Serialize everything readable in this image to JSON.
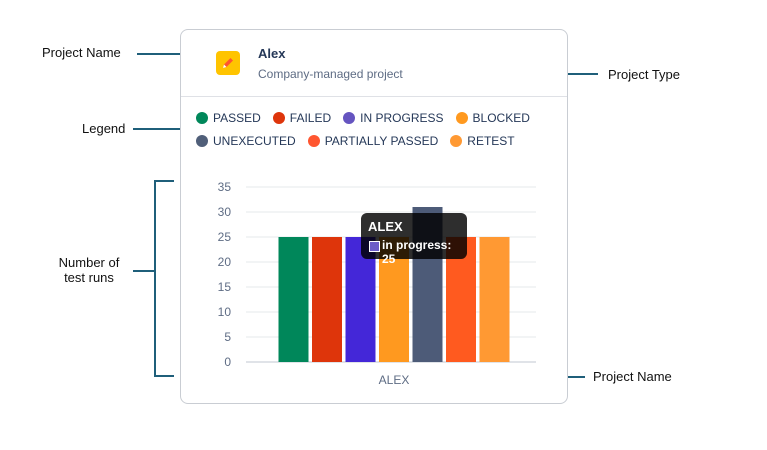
{
  "annotations": {
    "project_name_top": "Project Name",
    "project_type": "Project Type",
    "legend": "Legend",
    "runs_line1": "Number of",
    "runs_line2": "test runs",
    "project_name_bottom": "Project Name"
  },
  "project": {
    "name": "Alex",
    "type": "Company-managed project",
    "icon": "pencil-icon"
  },
  "legend_rows": [
    [
      {
        "label": "PASSED",
        "color": "#00875a"
      },
      {
        "label": "FAILED",
        "color": "#de350b"
      },
      {
        "label": "IN PROGRESS",
        "color": "#6554c0"
      },
      {
        "label": "BLOCKED",
        "color": "#ff991f"
      }
    ],
    [
      {
        "label": "UNEXECUTED",
        "color": "#505f79"
      },
      {
        "label": "PARTIALLY PASSED",
        "color": "#ff5630"
      },
      {
        "label": "RETEST",
        "color": "#ff9933"
      }
    ]
  ],
  "tooltip": {
    "title": "ALEX",
    "label": "in progress: 25"
  },
  "chart_data": {
    "type": "bar",
    "categories": [
      "ALEX"
    ],
    "series": [
      {
        "name": "PASSED",
        "values": [
          25
        ],
        "color": "#00875a"
      },
      {
        "name": "FAILED",
        "values": [
          25
        ],
        "color": "#de350b"
      },
      {
        "name": "IN PROGRESS",
        "values": [
          25
        ],
        "color": "#4427d8"
      },
      {
        "name": "BLOCKED",
        "values": [
          25
        ],
        "color": "#ff991f"
      },
      {
        "name": "UNEXECUTED",
        "values": [
          31
        ],
        "color": "#4d5b78"
      },
      {
        "name": "PARTIALLY PASSED",
        "values": [
          25
        ],
        "color": "#ff5a1f"
      },
      {
        "name": "RETEST",
        "values": [
          25
        ],
        "color": "#ff9933"
      }
    ],
    "ylim": [
      0,
      35
    ],
    "yticks": [
      "0",
      "5",
      "10",
      "15",
      "20",
      "25",
      "30",
      "35"
    ],
    "grid": true,
    "legend": "top"
  }
}
